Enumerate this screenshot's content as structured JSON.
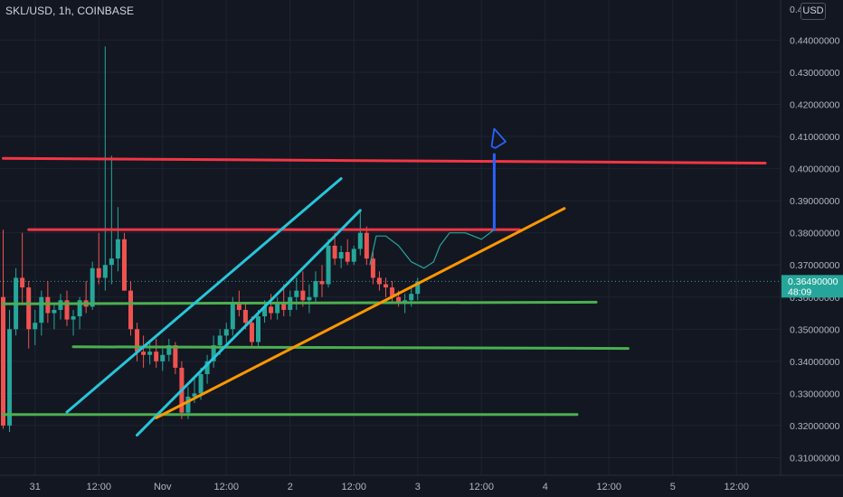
{
  "header": {
    "title": "SKL/USD, 1h, COINBASE",
    "currency_badge": "USD"
  },
  "price_tag": {
    "price": "0.36490000",
    "countdown": "48:09",
    "value": 0.3649,
    "color": "#26a69a"
  },
  "chart_data": {
    "type": "candlestick",
    "title": "SKL/USD, 1h, COINBASE",
    "xlabel": "",
    "ylabel": "",
    "ylim": [
      0.3045,
      0.4525
    ],
    "xlim": [
      0,
      120
    ],
    "y_ticks": [
      "0.44000000",
      "0.43000000",
      "0.42000000",
      "0.41000000",
      "0.40000000",
      "0.39000000",
      "0.38000000",
      "0.37000000",
      "0.36000000",
      "0.35000000",
      "0.34000000",
      "0.33000000",
      "0.32000000",
      "0.31000000"
    ],
    "y_tick_values": [
      0.44,
      0.43,
      0.42,
      0.41,
      0.4,
      0.39,
      0.38,
      0.37,
      0.36,
      0.35,
      0.34,
      0.33,
      0.32,
      0.31
    ],
    "y_top_partial": "0.4",
    "x_ticks": [
      {
        "label": "31",
        "x": 5
      },
      {
        "label": "12:00",
        "x": 15
      },
      {
        "label": "Nov",
        "x": 25
      },
      {
        "label": "12:00",
        "x": 35
      },
      {
        "label": "2",
        "x": 45
      },
      {
        "label": "12:00",
        "x": 55
      },
      {
        "label": "3",
        "x": 65
      },
      {
        "label": "12:00",
        "x": 75
      },
      {
        "label": "4",
        "x": 85
      },
      {
        "label": "12:00",
        "x": 95
      },
      {
        "label": "5",
        "x": 105
      },
      {
        "label": "12:00",
        "x": 115
      }
    ],
    "colors": {
      "up": "#26a69a",
      "down": "#ef5350",
      "background": "#131722",
      "grid": "#1f2330"
    },
    "candles": [
      [
        0.36,
        0.381,
        0.319,
        0.32
      ],
      [
        0.32,
        0.356,
        0.318,
        0.35
      ],
      [
        0.35,
        0.369,
        0.348,
        0.366
      ],
      [
        0.366,
        0.38,
        0.358,
        0.363
      ],
      [
        0.363,
        0.365,
        0.344,
        0.35
      ],
      [
        0.35,
        0.356,
        0.345,
        0.352
      ],
      [
        0.352,
        0.362,
        0.348,
        0.36
      ],
      [
        0.36,
        0.365,
        0.352,
        0.355
      ],
      [
        0.355,
        0.358,
        0.35,
        0.356
      ],
      [
        0.356,
        0.361,
        0.353,
        0.359
      ],
      [
        0.359,
        0.362,
        0.351,
        0.353
      ],
      [
        0.353,
        0.356,
        0.348,
        0.354
      ],
      [
        0.354,
        0.36,
        0.35,
        0.359
      ],
      [
        0.359,
        0.365,
        0.355,
        0.357
      ],
      [
        0.357,
        0.371,
        0.356,
        0.369
      ],
      [
        0.369,
        0.38,
        0.364,
        0.366
      ],
      [
        0.366,
        0.438,
        0.362,
        0.37
      ],
      [
        0.37,
        0.404,
        0.364,
        0.372
      ],
      [
        0.372,
        0.388,
        0.368,
        0.378
      ],
      [
        0.378,
        0.38,
        0.362,
        0.362
      ],
      [
        0.362,
        0.365,
        0.348,
        0.35
      ],
      [
        0.35,
        0.352,
        0.34,
        0.343
      ],
      [
        0.343,
        0.348,
        0.338,
        0.342
      ],
      [
        0.342,
        0.346,
        0.339,
        0.343
      ],
      [
        0.343,
        0.347,
        0.338,
        0.34
      ],
      [
        0.34,
        0.344,
        0.337,
        0.342
      ],
      [
        0.342,
        0.347,
        0.34,
        0.345
      ],
      [
        0.345,
        0.346,
        0.336,
        0.338
      ],
      [
        0.338,
        0.34,
        0.322,
        0.324
      ],
      [
        0.324,
        0.332,
        0.322,
        0.329
      ],
      [
        0.329,
        0.335,
        0.327,
        0.33
      ],
      [
        0.33,
        0.338,
        0.328,
        0.336
      ],
      [
        0.336,
        0.342,
        0.333,
        0.34
      ],
      [
        0.34,
        0.348,
        0.338,
        0.345
      ],
      [
        0.345,
        0.35,
        0.342,
        0.348
      ],
      [
        0.348,
        0.352,
        0.345,
        0.35
      ],
      [
        0.35,
        0.36,
        0.348,
        0.358
      ],
      [
        0.358,
        0.362,
        0.354,
        0.356
      ],
      [
        0.356,
        0.358,
        0.35,
        0.352
      ],
      [
        0.352,
        0.354,
        0.344,
        0.346
      ],
      [
        0.346,
        0.356,
        0.344,
        0.354
      ],
      [
        0.354,
        0.359,
        0.352,
        0.357
      ],
      [
        0.357,
        0.361,
        0.353,
        0.355
      ],
      [
        0.355,
        0.36,
        0.353,
        0.358
      ],
      [
        0.358,
        0.364,
        0.354,
        0.356
      ],
      [
        0.356,
        0.362,
        0.354,
        0.36
      ],
      [
        0.36,
        0.366,
        0.356,
        0.362
      ],
      [
        0.362,
        0.368,
        0.357,
        0.359
      ],
      [
        0.359,
        0.364,
        0.355,
        0.36
      ],
      [
        0.36,
        0.368,
        0.358,
        0.365
      ],
      [
        0.365,
        0.37,
        0.36,
        0.364
      ],
      [
        0.364,
        0.378,
        0.363,
        0.376
      ],
      [
        0.376,
        0.38,
        0.37,
        0.372
      ],
      [
        0.372,
        0.376,
        0.369,
        0.374
      ],
      [
        0.374,
        0.378,
        0.37,
        0.371
      ],
      [
        0.371,
        0.376,
        0.37,
        0.375
      ],
      [
        0.375,
        0.387,
        0.373,
        0.38
      ],
      [
        0.38,
        0.382,
        0.37,
        0.372
      ],
      [
        0.372,
        0.374,
        0.364,
        0.366
      ],
      [
        0.366,
        0.368,
        0.362,
        0.364
      ],
      [
        0.364,
        0.366,
        0.36,
        0.363
      ],
      [
        0.363,
        0.365,
        0.358,
        0.36
      ],
      [
        0.36,
        0.362,
        0.357,
        0.358
      ],
      [
        0.358,
        0.361,
        0.355,
        0.359
      ],
      [
        0.359,
        0.363,
        0.357,
        0.361
      ],
      [
        0.361,
        0.366,
        0.359,
        0.3649
      ]
    ],
    "drawings": [
      {
        "name": "resistance-upper",
        "kind": "line",
        "color": "#f23645",
        "points": [
          [
            0,
            0.4032
          ],
          [
            119.5,
            0.4017
          ]
        ]
      },
      {
        "name": "resistance-mid",
        "kind": "line",
        "color": "#f23645",
        "points": [
          [
            4,
            0.381
          ],
          [
            81,
            0.381
          ]
        ]
      },
      {
        "name": "support-1",
        "kind": "line",
        "color": "#4caf50",
        "points": [
          [
            0,
            0.3579
          ],
          [
            93,
            0.3584
          ]
        ]
      },
      {
        "name": "support-2",
        "kind": "line",
        "color": "#4caf50",
        "points": [
          [
            11,
            0.3445
          ],
          [
            98,
            0.344
          ]
        ]
      },
      {
        "name": "support-3",
        "kind": "line",
        "color": "#4caf50",
        "points": [
          [
            0,
            0.3234
          ],
          [
            90,
            0.3234
          ]
        ]
      },
      {
        "name": "channel-upper",
        "kind": "line",
        "color": "#26c6da",
        "points": [
          [
            10,
            0.3242
          ],
          [
            53,
            0.3969
          ]
        ]
      },
      {
        "name": "channel-lower",
        "kind": "line",
        "color": "#26c6da",
        "points": [
          [
            21,
            0.317
          ],
          [
            56,
            0.387
          ]
        ]
      },
      {
        "name": "uptrend",
        "kind": "line",
        "color": "#ff9800",
        "points": [
          [
            24,
            0.3224
          ],
          [
            88,
            0.3876
          ]
        ]
      },
      {
        "name": "target-arrow",
        "kind": "line",
        "color": "#2962ff",
        "points": [
          [
            77,
            0.381
          ],
          [
            77,
            0.4044
          ]
        ]
      },
      {
        "name": "projection-path",
        "kind": "path",
        "color": "#26a69a",
        "points": [
          [
            57.5,
            0.37
          ],
          [
            58.5,
            0.379
          ],
          [
            60,
            0.379
          ],
          [
            62,
            0.376
          ],
          [
            64,
            0.371
          ],
          [
            66,
            0.369
          ],
          [
            67.5,
            0.371
          ],
          [
            68.5,
            0.376
          ],
          [
            70,
            0.38
          ],
          [
            72.5,
            0.38
          ],
          [
            75,
            0.378
          ],
          [
            77,
            0.381
          ]
        ]
      },
      {
        "name": "target-marker",
        "kind": "path",
        "color": "#2962ff",
        "points": [
          [
            76.6,
            0.4069
          ],
          [
            77.0,
            0.4124
          ],
          [
            78.8,
            0.4084
          ],
          [
            77.2,
            0.4064
          ],
          [
            76.6,
            0.4069
          ]
        ]
      }
    ]
  }
}
